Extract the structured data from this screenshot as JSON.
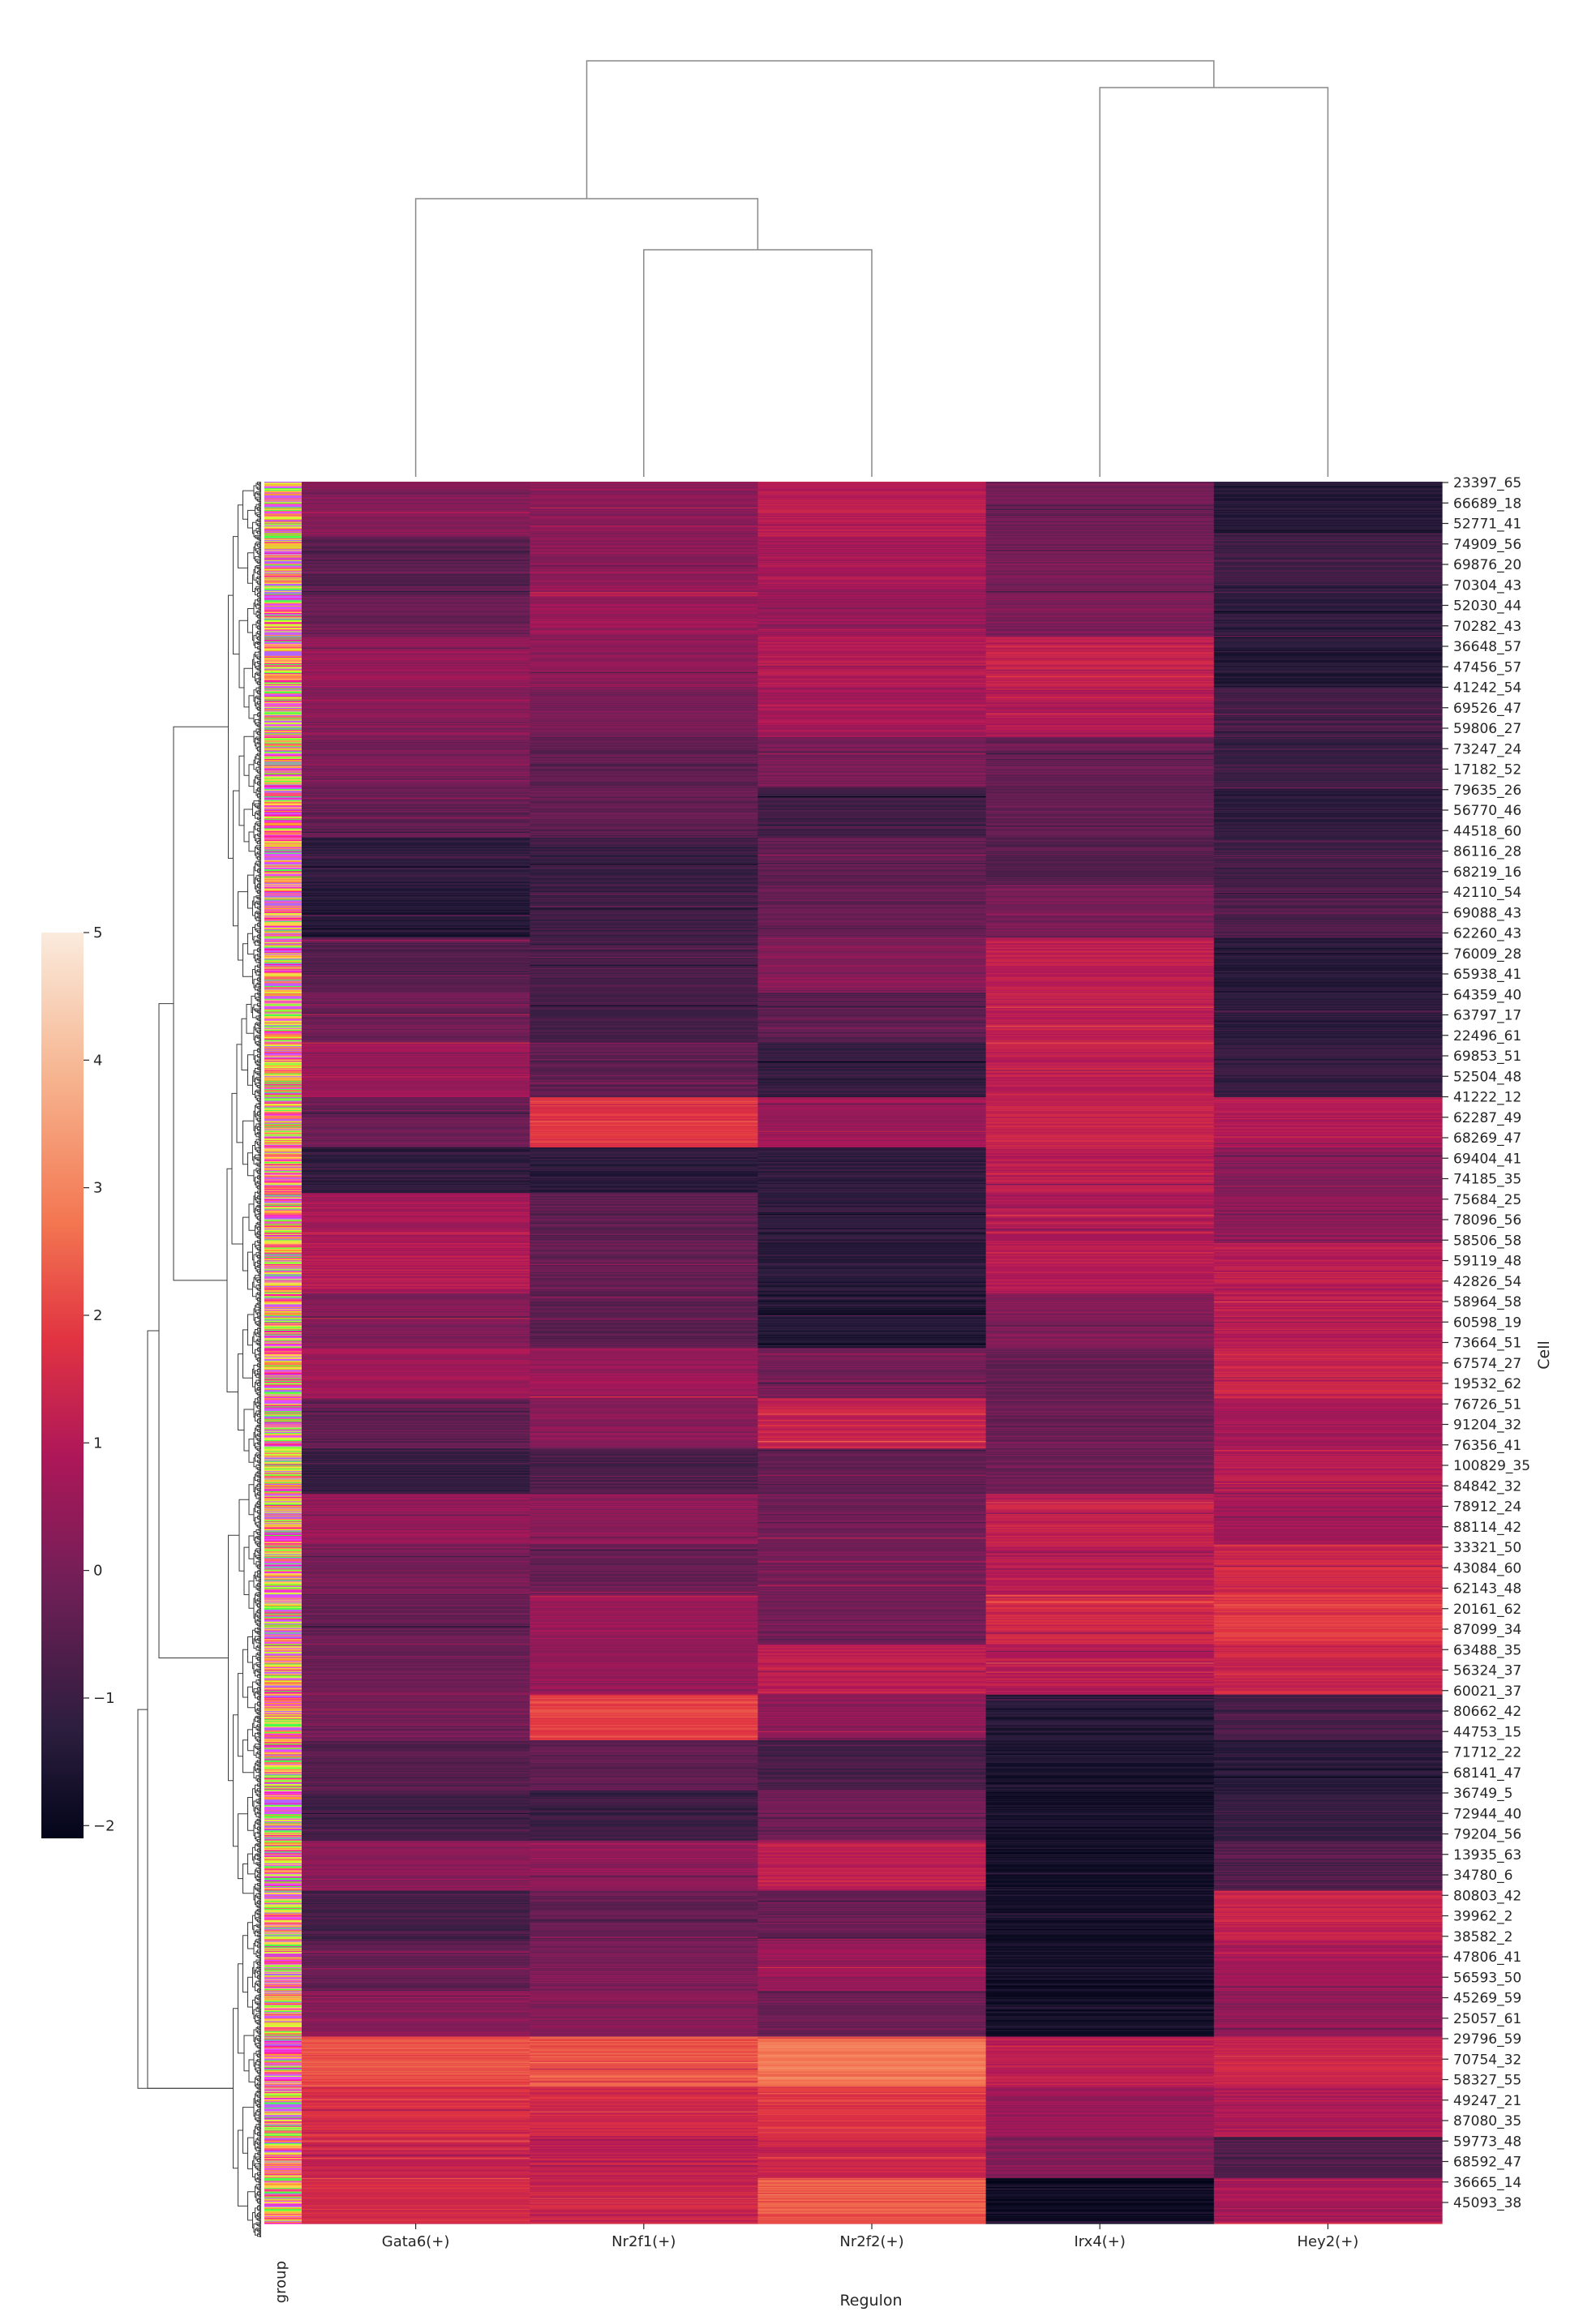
{
  "chart_data": {
    "type": "heatmap",
    "variant": "clustermap",
    "xlabel": "Regulon",
    "ylabel": "Cell",
    "columns": [
      "Gata6(+)",
      "Nr2f1(+)",
      "Nr2f2(+)",
      "Irx4(+)",
      "Hey2(+)"
    ],
    "row_color_label": "group",
    "row_tick_labels": [
      "23397_65",
      "66689_18",
      "52771_41",
      "74909_56",
      "69876_20",
      "70304_43",
      "52030_44",
      "70282_43",
      "36648_57",
      "47456_57",
      "41242_54",
      "69526_47",
      "59806_27",
      "73247_24",
      "17182_52",
      "79635_26",
      "56770_46",
      "44518_60",
      "86116_28",
      "68219_16",
      "42110_54",
      "69088_43",
      "62260_43",
      "76009_28",
      "65938_41",
      "64359_40",
      "63797_17",
      "22496_61",
      "69853_51",
      "52504_48",
      "41222_12",
      "62287_49",
      "68269_47",
      "69404_41",
      "74185_35",
      "75684_25",
      "78096_56",
      "58506_58",
      "59119_48",
      "42826_54",
      "58964_58",
      "60598_19",
      "73664_51",
      "67574_27",
      "19532_62",
      "76726_51",
      "91204_32",
      "76356_41",
      "100829_35",
      "84842_32",
      "78912_24",
      "88114_42",
      "33321_50",
      "43084_60",
      "62143_48",
      "20161_62",
      "87099_34",
      "63488_35",
      "56324_37",
      "60021_37",
      "80662_42",
      "44753_15",
      "71712_22",
      "68141_47",
      "36749_5",
      "72944_40",
      "79204_56",
      "13935_63",
      "34780_6",
      "80803_42",
      "39962_2",
      "38582_2",
      "47806_41",
      "56593_50",
      "45269_59",
      "25057_61",
      "29796_59",
      "70754_32",
      "58327_55",
      "49247_21",
      "87080_35",
      "59773_48",
      "68592_47",
      "36665_14",
      "45093_38"
    ],
    "row_blocks": [
      [
        0.25,
        0.3,
        1.1,
        -0.1,
        -1.4
      ],
      [
        -0.5,
        0.4,
        0.8,
        0.0,
        -0.9
      ],
      [
        -0.2,
        0.6,
        0.5,
        0.1,
        -1.2
      ],
      [
        0.5,
        0.4,
        1.0,
        1.3,
        -1.4
      ],
      [
        0.2,
        0.0,
        0.7,
        0.9,
        -0.8
      ],
      [
        0.0,
        -0.4,
        0.0,
        -0.2,
        -1.0
      ],
      [
        -0.3,
        -0.3,
        -0.9,
        -0.3,
        -1.2
      ],
      [
        -1.2,
        -1.0,
        -0.4,
        -0.5,
        -0.9
      ],
      [
        -1.4,
        -0.9,
        -0.3,
        0.0,
        -0.6
      ],
      [
        -0.6,
        -0.7,
        0.2,
        1.2,
        -1.3
      ],
      [
        -0.1,
        -0.8,
        -0.5,
        1.2,
        -1.2
      ],
      [
        0.6,
        -0.3,
        -1.1,
        1.2,
        -1.1
      ],
      [
        -0.2,
        1.8,
        0.6,
        1.3,
        1.0
      ],
      [
        -1.2,
        -1.3,
        -1.2,
        1.1,
        0.2
      ],
      [
        0.8,
        -0.4,
        -1.2,
        0.9,
        0.4
      ],
      [
        1.0,
        -0.3,
        -1.3,
        1.1,
        1.1
      ],
      [
        0.2,
        -0.5,
        -1.5,
        0.2,
        1.1
      ],
      [
        0.7,
        0.6,
        0.0,
        -0.3,
        1.4
      ],
      [
        -0.4,
        0.3,
        1.3,
        -0.2,
        0.8
      ],
      [
        -1.1,
        -0.7,
        -0.3,
        -0.2,
        1.0
      ],
      [
        0.5,
        0.4,
        -0.1,
        1.3,
        0.7
      ],
      [
        0.0,
        -0.2,
        0.0,
        1.1,
        1.5
      ],
      [
        -0.3,
        0.6,
        -0.1,
        1.5,
        1.8
      ],
      [
        -0.2,
        0.5,
        1.2,
        1.1,
        1.4
      ],
      [
        0.0,
        2.0,
        0.4,
        -1.4,
        -0.8
      ],
      [
        -0.5,
        -0.4,
        -0.8,
        -1.6,
        -1.3
      ],
      [
        -0.9,
        -1.0,
        -0.1,
        -1.7,
        -1.1
      ],
      [
        0.3,
        0.4,
        1.2,
        -1.7,
        -0.6
      ],
      [
        -0.8,
        -0.3,
        -0.2,
        -1.7,
        1.3
      ],
      [
        -0.3,
        0.1,
        0.6,
        -1.7,
        0.7
      ],
      [
        0.3,
        0.2,
        -0.2,
        -1.7,
        0.4
      ],
      [
        2.2,
        2.3,
        2.8,
        1.1,
        1.4
      ],
      [
        1.6,
        1.5,
        1.8,
        0.6,
        0.9
      ],
      [
        1.3,
        1.2,
        1.4,
        0.2,
        -0.6
      ],
      [
        1.6,
        1.4,
        2.4,
        -1.9,
        0.8
      ]
    ],
    "block_rows": [
      60,
      55,
      55,
      55,
      55,
      55,
      55,
      55,
      55,
      60,
      55,
      60,
      55,
      50,
      55,
      55,
      60,
      55,
      55,
      50,
      55,
      55,
      55,
      55,
      50,
      55,
      55,
      55,
      55,
      55,
      50,
      55,
      55,
      45,
      50
    ],
    "colorbar": {
      "min": -2.1,
      "max": 5,
      "ticks": [
        -2,
        -1,
        0,
        1,
        2,
        3,
        4,
        5
      ],
      "tick_labels": [
        "−2",
        "−1",
        "0",
        "1",
        "2",
        "3",
        "4",
        "5"
      ]
    },
    "group_colors": [
      "#ff1aa6",
      "#ffd24d",
      "#4dff4d",
      "#ff6b6b",
      "#b366ff",
      "#ff9933",
      "#e64dff",
      "#ccff33"
    ]
  }
}
